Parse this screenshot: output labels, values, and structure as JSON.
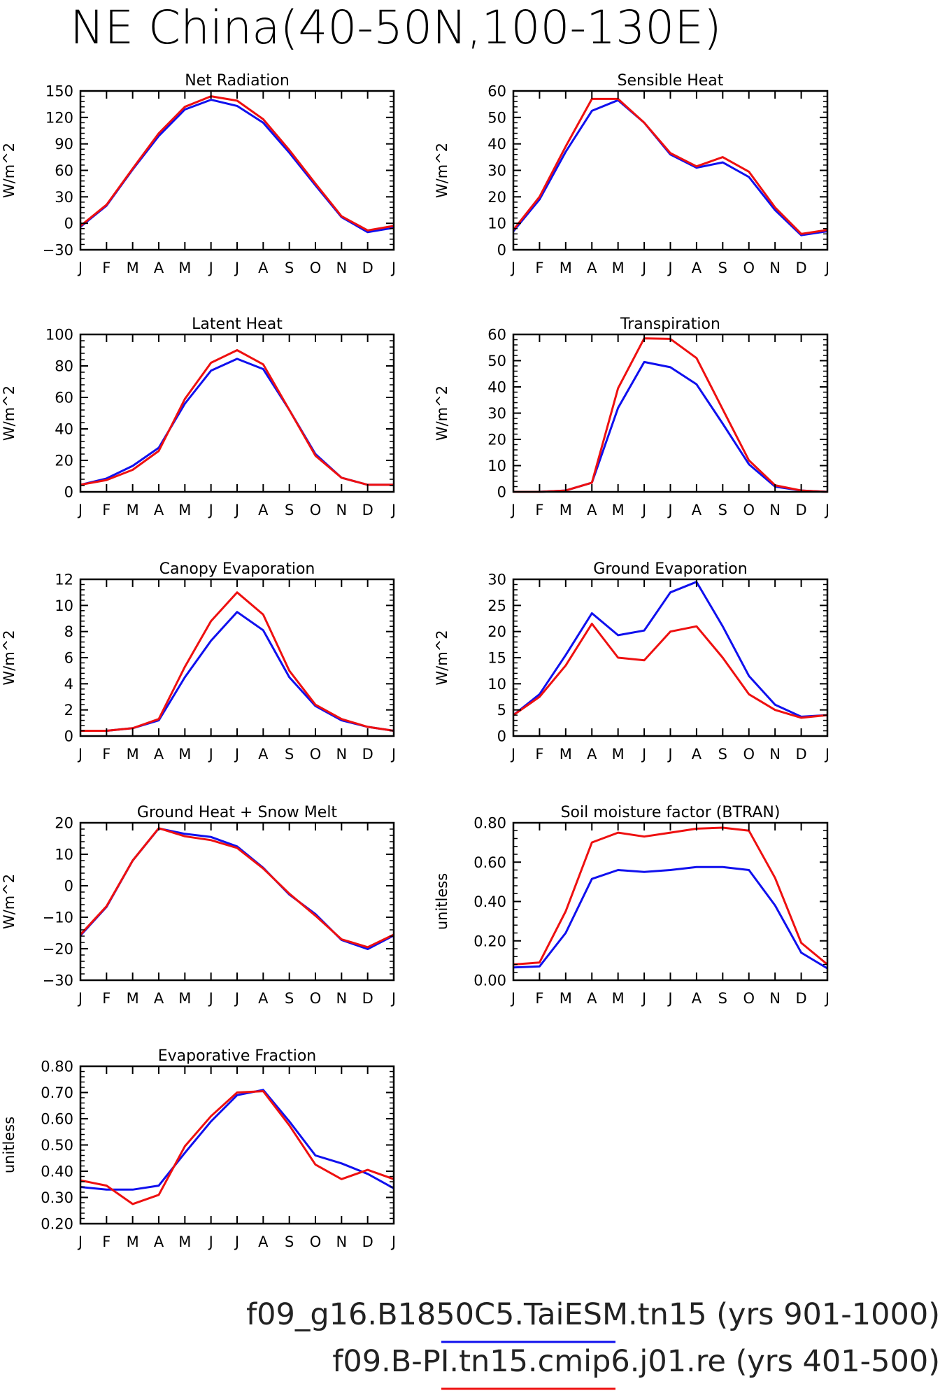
{
  "title": "NE China(40-50N,100-130E)",
  "legend": [
    {
      "label": "f09_g16.B1850C5.TaiESM.tn15 (yrs 901-1000)",
      "color": "#1010ee"
    },
    {
      "label": "f09.B-PI.tn15.cmip6.j01.re (yrs 401-500)",
      "color": "#ee1010"
    }
  ],
  "chart_data": [
    {
      "type": "line",
      "title": "Net Radiation",
      "ylabel": "W/m^2",
      "categories": [
        "J",
        "F",
        "M",
        "A",
        "M",
        "J",
        "J",
        "A",
        "S",
        "O",
        "N",
        "D",
        "J"
      ],
      "ylim": [
        -30,
        150
      ],
      "yticks": [
        -30,
        0,
        30,
        60,
        90,
        120,
        150
      ],
      "ytick_labels": [
        "−30",
        "0",
        "30",
        "60",
        "90",
        "120",
        "150"
      ],
      "series": [
        {
          "name": "f09.B-PI.tn15.cmip6.j01.re",
          "color": "#ee1010",
          "values": [
            -3,
            21,
            62,
            102,
            132,
            144,
            139,
            118,
            83,
            45,
            8,
            -8,
            -3
          ]
        },
        {
          "name": "f09_g16.B1850C5.TaiESM.tn15",
          "color": "#1010ee",
          "values": [
            -4,
            20,
            61,
            99,
            129,
            140,
            133,
            114,
            80,
            43,
            7,
            -10,
            -5
          ]
        }
      ]
    },
    {
      "type": "line",
      "title": "Sensible Heat",
      "ylabel": "W/m^2",
      "categories": [
        "J",
        "F",
        "M",
        "A",
        "M",
        "J",
        "J",
        "A",
        "S",
        "O",
        "N",
        "D",
        "J"
      ],
      "ylim": [
        0,
        60
      ],
      "yticks": [
        0,
        10,
        20,
        30,
        40,
        50,
        60
      ],
      "ytick_labels": [
        "0",
        "10",
        "20",
        "30",
        "40",
        "50",
        "60"
      ],
      "series": [
        {
          "name": "f09.B-PI.tn15.cmip6.j01.re",
          "color": "#ee1010",
          "values": [
            7.5,
            20,
            39,
            57,
            57,
            48,
            36.5,
            31.5,
            35,
            29.5,
            16,
            6,
            7.5
          ]
        },
        {
          "name": "f09_g16.B1850C5.TaiESM.tn15",
          "color": "#1010ee",
          "values": [
            7,
            19,
            37,
            52.5,
            56.5,
            48,
            36,
            31,
            33,
            27.5,
            15,
            5.5,
            7
          ]
        }
      ]
    },
    {
      "type": "line",
      "title": "Latent Heat",
      "ylabel": "W/m^2",
      "categories": [
        "J",
        "F",
        "M",
        "A",
        "M",
        "J",
        "J",
        "A",
        "S",
        "O",
        "N",
        "D",
        "J"
      ],
      "ylim": [
        0,
        100
      ],
      "yticks": [
        0,
        20,
        40,
        60,
        80,
        100
      ],
      "ytick_labels": [
        "0",
        "20",
        "40",
        "60",
        "80",
        "100"
      ],
      "series": [
        {
          "name": "f09.B-PI.tn15.cmip6.j01.re",
          "color": "#ee1010",
          "values": [
            4.5,
            7.5,
            14,
            26,
            59,
            82,
            90,
            81,
            52,
            23,
            9,
            4.5,
            4.5
          ]
        },
        {
          "name": "f09_g16.B1850C5.TaiESM.tn15",
          "color": "#1010ee",
          "values": [
            4.5,
            8.5,
            16.5,
            28,
            56,
            77,
            84.5,
            78,
            52,
            24,
            9,
            4.5,
            4.5
          ]
        }
      ]
    },
    {
      "type": "line",
      "title": "Transpiration",
      "ylabel": "W/m^2",
      "categories": [
        "J",
        "F",
        "M",
        "A",
        "M",
        "J",
        "J",
        "A",
        "S",
        "O",
        "N",
        "D",
        "J"
      ],
      "ylim": [
        0,
        60
      ],
      "yticks": [
        0,
        10,
        20,
        30,
        40,
        50,
        60
      ],
      "ytick_labels": [
        "0",
        "10",
        "20",
        "30",
        "40",
        "50",
        "60"
      ],
      "series": [
        {
          "name": "f09.B-PI.tn15.cmip6.j01.re",
          "color": "#ee1010",
          "values": [
            0,
            0,
            0.5,
            3.5,
            39.5,
            58.5,
            58.3,
            51,
            31.5,
            12,
            2.5,
            0.5,
            0
          ]
        },
        {
          "name": "f09_g16.B1850C5.TaiESM.tn15",
          "color": "#1010ee",
          "values": [
            0,
            0,
            0.5,
            3.5,
            32,
            49.5,
            47.5,
            41,
            26,
            10.5,
            2,
            0.5,
            0
          ]
        }
      ]
    },
    {
      "type": "line",
      "title": "Canopy Evaporation",
      "ylabel": "W/m^2",
      "categories": [
        "J",
        "F",
        "M",
        "A",
        "M",
        "J",
        "J",
        "A",
        "S",
        "O",
        "N",
        "D",
        "J"
      ],
      "ylim": [
        0,
        12
      ],
      "yticks": [
        0,
        2,
        4,
        6,
        8,
        10,
        12
      ],
      "ytick_labels": [
        "0",
        "2",
        "4",
        "6",
        "8",
        "10",
        "12"
      ],
      "series": [
        {
          "name": "f09.B-PI.tn15.cmip6.j01.re",
          "color": "#ee1010",
          "values": [
            0.4,
            0.4,
            0.6,
            1.3,
            5.3,
            8.8,
            11,
            9.3,
            5,
            2.4,
            1.3,
            0.7,
            0.4
          ]
        },
        {
          "name": "f09_g16.B1850C5.TaiESM.tn15",
          "color": "#1010ee",
          "values": [
            0.4,
            0.4,
            0.6,
            1.2,
            4.5,
            7.3,
            9.5,
            8.1,
            4.5,
            2.3,
            1.2,
            0.7,
            0.4
          ]
        }
      ]
    },
    {
      "type": "line",
      "title": "Ground Evaporation",
      "ylabel": "W/m^2",
      "categories": [
        "J",
        "F",
        "M",
        "A",
        "M",
        "J",
        "J",
        "A",
        "S",
        "O",
        "N",
        "D",
        "J"
      ],
      "ylim": [
        0,
        30
      ],
      "yticks": [
        0,
        5,
        10,
        15,
        20,
        25,
        30
      ],
      "ytick_labels": [
        "0",
        "5",
        "10",
        "15",
        "20",
        "25",
        "30"
      ],
      "series": [
        {
          "name": "f09.B-PI.tn15.cmip6.j01.re",
          "color": "#ee1010",
          "values": [
            4,
            7.5,
            13.5,
            21.5,
            15,
            14.5,
            20,
            21,
            15,
            8,
            5,
            3.5,
            4
          ]
        },
        {
          "name": "f09_g16.B1850C5.TaiESM.tn15",
          "color": "#1010ee",
          "values": [
            4,
            8,
            15.5,
            23.5,
            19.3,
            20.2,
            27.5,
            29.5,
            21,
            11.5,
            6,
            3.7,
            4
          ]
        }
      ]
    },
    {
      "type": "line",
      "title": "Ground Heat + Snow Melt",
      "ylabel": "W/m^2",
      "categories": [
        "J",
        "F",
        "M",
        "A",
        "M",
        "J",
        "J",
        "A",
        "S",
        "O",
        "N",
        "D",
        "J"
      ],
      "ylim": [
        -30,
        20
      ],
      "yticks": [
        -30,
        -20,
        -10,
        0,
        10,
        20
      ],
      "ytick_labels": [
        "−30",
        "−20",
        "−10",
        "0",
        "10",
        "20"
      ],
      "series": [
        {
          "name": "f09.B-PI.tn15.cmip6.j01.re",
          "color": "#ee1010",
          "values": [
            -15.5,
            -6.5,
            8,
            18.3,
            15.7,
            14.5,
            12,
            5.5,
            -2.5,
            -9.5,
            -17,
            -19.5,
            -15.5
          ]
        },
        {
          "name": "f09_g16.B1850C5.TaiESM.tn15",
          "color": "#1010ee",
          "values": [
            -15.8,
            -6.7,
            8,
            18.2,
            16.5,
            15.5,
            12.5,
            5.7,
            -2.8,
            -9,
            -17.2,
            -20.1,
            -15.8
          ]
        }
      ]
    },
    {
      "type": "line",
      "title": "Soil moisture factor (BTRAN)",
      "ylabel": "unitless",
      "categories": [
        "J",
        "F",
        "M",
        "A",
        "M",
        "J",
        "J",
        "A",
        "S",
        "O",
        "N",
        "D",
        "J"
      ],
      "ylim": [
        0,
        0.8
      ],
      "yticks": [
        0,
        0.2,
        0.4,
        0.6,
        0.8
      ],
      "ytick_labels": [
        "0.00",
        "0.20",
        "0.40",
        "0.60",
        "0.80"
      ],
      "series": [
        {
          "name": "f09.B-PI.tn15.cmip6.j01.re",
          "color": "#ee1010",
          "values": [
            0.08,
            0.09,
            0.35,
            0.7,
            0.75,
            0.73,
            0.75,
            0.77,
            0.775,
            0.76,
            0.52,
            0.19,
            0.08
          ]
        },
        {
          "name": "f09_g16.B1850C5.TaiESM.tn15",
          "color": "#1010ee",
          "values": [
            0.065,
            0.07,
            0.24,
            0.515,
            0.56,
            0.55,
            0.56,
            0.575,
            0.575,
            0.56,
            0.38,
            0.14,
            0.06
          ]
        }
      ]
    },
    {
      "type": "line",
      "title": "Evaporative Fraction",
      "ylabel": "unitless",
      "categories": [
        "J",
        "F",
        "M",
        "A",
        "M",
        "J",
        "J",
        "A",
        "S",
        "O",
        "N",
        "D",
        "J"
      ],
      "ylim": [
        0.2,
        0.8
      ],
      "yticks": [
        0.2,
        0.3,
        0.4,
        0.5,
        0.6,
        0.7,
        0.8
      ],
      "ytick_labels": [
        "0.20",
        "0.30",
        "0.40",
        "0.50",
        "0.60",
        "0.70",
        "0.80"
      ],
      "series": [
        {
          "name": "f09.B-PI.tn15.cmip6.j01.re",
          "color": "#ee1010",
          "values": [
            0.365,
            0.345,
            0.275,
            0.31,
            0.495,
            0.61,
            0.7,
            0.705,
            0.575,
            0.425,
            0.37,
            0.405,
            0.37
          ]
        },
        {
          "name": "f09_g16.B1850C5.TaiESM.tn15",
          "color": "#1010ee",
          "values": [
            0.34,
            0.33,
            0.33,
            0.345,
            0.47,
            0.59,
            0.69,
            0.71,
            0.59,
            0.46,
            0.43,
            0.39,
            0.335
          ]
        }
      ]
    }
  ]
}
